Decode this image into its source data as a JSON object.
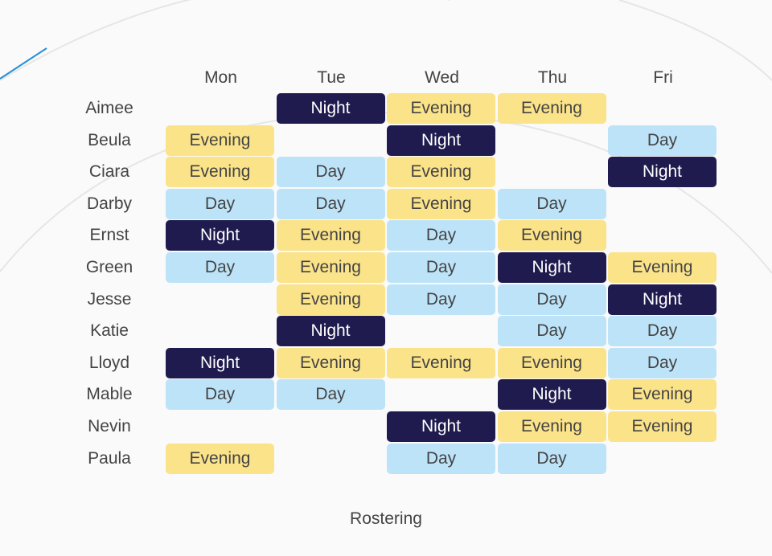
{
  "chart_data": {
    "type": "table",
    "title": "Rostering",
    "days": [
      "Mon",
      "Tue",
      "Wed",
      "Thu",
      "Fri"
    ],
    "people": [
      "Aimee",
      "Beula",
      "Ciara",
      "Darby",
      "Ernst",
      "Green",
      "Jesse",
      "Katie",
      "Lloyd",
      "Mable",
      "Nevin",
      "Paula"
    ],
    "shifts": [
      [
        "",
        "Night",
        "Evening",
        "Evening",
        ""
      ],
      [
        "Evening",
        "",
        "Night",
        "",
        "Day"
      ],
      [
        "Evening",
        "Day",
        "Evening",
        "",
        "Night"
      ],
      [
        "Day",
        "Day",
        "Evening",
        "Day",
        ""
      ],
      [
        "Night",
        "Evening",
        "Day",
        "Evening",
        ""
      ],
      [
        "Day",
        "Evening",
        "Day",
        "Night",
        "Evening"
      ],
      [
        "",
        "Evening",
        "Day",
        "Day",
        "Night"
      ],
      [
        "",
        "Night",
        "",
        "Day",
        "Day"
      ],
      [
        "Night",
        "Evening",
        "Evening",
        "Evening",
        "Day"
      ],
      [
        "Day",
        "Day",
        "",
        "Night",
        "Evening"
      ],
      [
        "",
        "",
        "Night",
        "Evening",
        "Evening"
      ],
      [
        "Evening",
        "",
        "Day",
        "Day",
        ""
      ]
    ],
    "colors": {
      "Day": {
        "bg": "#bde3f8",
        "fg": "#444444"
      },
      "Evening": {
        "bg": "#fbe38a",
        "fg": "#444444"
      },
      "Night": {
        "bg": "#1f1b4e",
        "fg": "#ffffff"
      }
    }
  }
}
